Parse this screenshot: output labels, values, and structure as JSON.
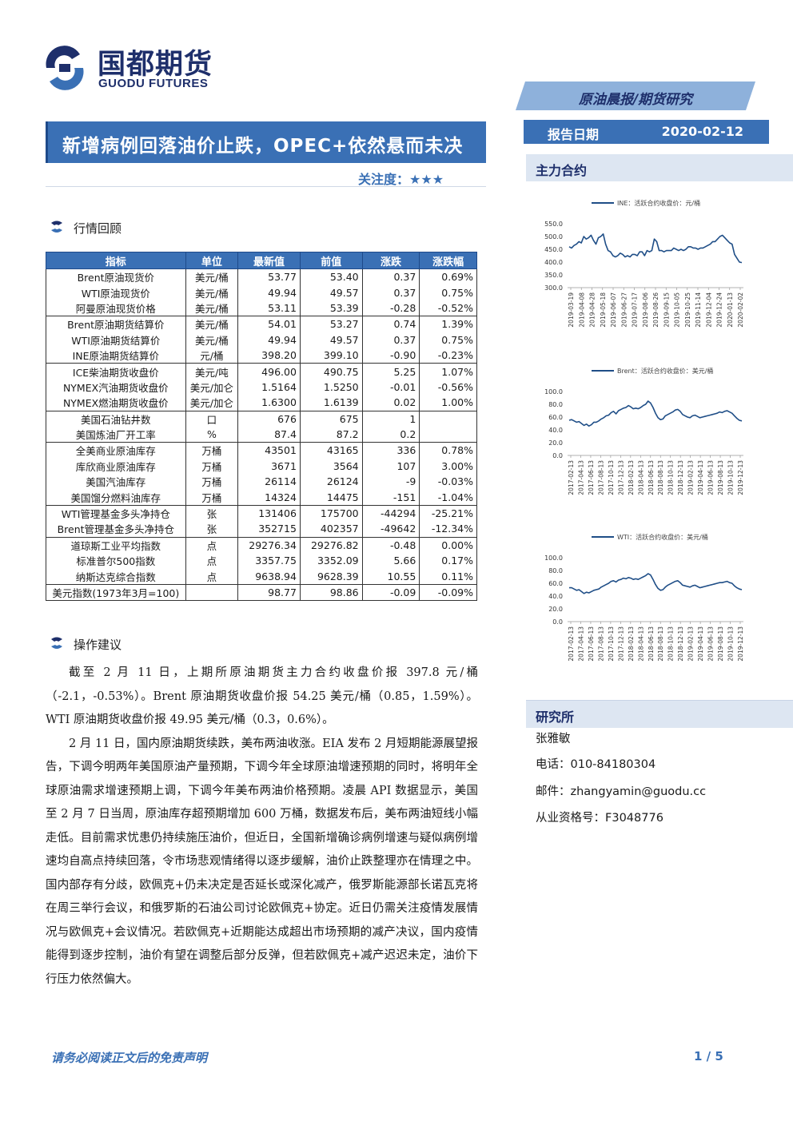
{
  "header": {
    "company_cn": "国都期货",
    "company_en": "GUODU FUTURES",
    "report_type": "原油晨报/期货研究",
    "title": "新增病例回落油价止跌，OPEC+依然悬而未决",
    "focus_label": "关注度：",
    "focus_stars": 3,
    "date_label": "报告日期",
    "date_value": "2020-02-12"
  },
  "sections": {
    "market_review": "行情回顾",
    "advice": "操作建议",
    "main_contract": "主力合约",
    "institute": "研究所"
  },
  "table": {
    "headers": [
      "指标",
      "单位",
      "最新值",
      "前值",
      "涨跌",
      "涨跌幅"
    ],
    "rows": [
      {
        "name": "Brent原油现货价",
        "unit": "美元/桶",
        "latest": "53.77",
        "prev": "53.40",
        "chg": "0.37",
        "pct": "0.69%"
      },
      {
        "name": "WTI原油现货价",
        "unit": "美元/桶",
        "latest": "49.94",
        "prev": "49.57",
        "chg": "0.37",
        "pct": "0.75%"
      },
      {
        "name": "阿曼原油现货价格",
        "unit": "美元/桶",
        "latest": "53.11",
        "prev": "53.39",
        "chg": "-0.28",
        "pct": "-0.52%"
      },
      {
        "name": "Brent原油期货结算价",
        "unit": "美元/桶",
        "latest": "54.01",
        "prev": "53.27",
        "chg": "0.74",
        "pct": "1.39%"
      },
      {
        "name": "WTI原油期货结算价",
        "unit": "美元/桶",
        "latest": "49.94",
        "prev": "49.57",
        "chg": "0.37",
        "pct": "0.75%"
      },
      {
        "name": "INE原油期货结算价",
        "unit": "元/桶",
        "latest": "398.20",
        "prev": "399.10",
        "chg": "-0.90",
        "pct": "-0.23%"
      },
      {
        "name": "ICE柴油期货收盘价",
        "unit": "美元/吨",
        "latest": "496.00",
        "prev": "490.75",
        "chg": "5.25",
        "pct": "1.07%"
      },
      {
        "name": "NYMEX汽油期货收盘价",
        "unit": "美元/加仑",
        "latest": "1.5164",
        "prev": "1.5250",
        "chg": "-0.01",
        "pct": "-0.56%"
      },
      {
        "name": "NYMEX燃油期货收盘价",
        "unit": "美元/加仑",
        "latest": "1.6300",
        "prev": "1.6139",
        "chg": "0.02",
        "pct": "1.00%"
      },
      {
        "name": "美国石油钻井数",
        "unit": "口",
        "latest": "676",
        "prev": "675",
        "chg": "1",
        "pct": ""
      },
      {
        "name": "美国炼油厂开工率",
        "unit": "%",
        "latest": "87.4",
        "prev": "87.2",
        "chg": "0.2",
        "pct": ""
      },
      {
        "name": "全美商业原油库存",
        "unit": "万桶",
        "latest": "43501",
        "prev": "43165",
        "chg": "336",
        "pct": "0.78%"
      },
      {
        "name": "库欣商业原油库存",
        "unit": "万桶",
        "latest": "3671",
        "prev": "3564",
        "chg": "107",
        "pct": "3.00%"
      },
      {
        "name": "美国汽油库存",
        "unit": "万桶",
        "latest": "26114",
        "prev": "26124",
        "chg": "-9",
        "pct": "-0.03%"
      },
      {
        "name": "美国馏分燃料油库存",
        "unit": "万桶",
        "latest": "14324",
        "prev": "14475",
        "chg": "-151",
        "pct": "-1.04%"
      },
      {
        "name": "WTI管理基金多头净持仓",
        "unit": "张",
        "latest": "131406",
        "prev": "175700",
        "chg": "-44294",
        "pct": "-25.21%"
      },
      {
        "name": "Brent管理基金多头净持仓",
        "unit": "张",
        "latest": "352715",
        "prev": "402357",
        "chg": "-49642",
        "pct": "-12.34%"
      },
      {
        "name": "道琼斯工业平均指数",
        "unit": "点",
        "latest": "29276.34",
        "prev": "29276.82",
        "chg": "-0.48",
        "pct": "0.00%"
      },
      {
        "name": "标准普尔500指数",
        "unit": "点",
        "latest": "3357.75",
        "prev": "3352.09",
        "chg": "5.66",
        "pct": "0.17%"
      },
      {
        "name": "纳斯达克综合指数",
        "unit": "点",
        "latest": "9638.94",
        "prev": "9628.39",
        "chg": "10.55",
        "pct": "0.11%"
      },
      {
        "name": "美元指数(1973年3月=100)",
        "unit": "",
        "latest": "98.77",
        "prev": "98.86",
        "chg": "-0.09",
        "pct": "-0.09%"
      }
    ]
  },
  "advice": {
    "p1": "截至 2 月 11 日，上期所原油期货主力合约收盘价报 397.8 元/桶（-2.1，-0.53%）。Brent 原油期货收盘价报 54.25 美元/桶（0.85，1.59%）。WTI 原油期货收盘价报 49.95 美元/桶（0.3，0.6%）。",
    "p2": "2 月 11 日，国内原油期货续跌，美布两油收涨。EIA 发布 2 月短期能源展望报告，下调今明两年美国原油产量预期，下调今年全球原油增速预期的同时，将明年全球原油需求增速预期上调，下调今年美布两油价格预期。凌晨 API 数据显示，美国至 2 月 7 日当周，原油库存超预期增加 600 万桶，数据发布后，美布两油短线小幅走低。目前需求忧患仍持续施压油价，但近日，全国新增确诊病例增速与疑似病例增速均自高点持续回落，令市场悲观情绪得以逐步缓解，油价止跌整理亦在情理之中。国内部存有分歧，欧佩克+仍未决定是否延长或深化减产，俄罗斯能源部长诺瓦克将在周三举行会议，和俄罗斯的石油公司讨论欧佩克+协定。近日仍需关注疫情发展情况与欧佩克+会议情况。若欧佩克+近期能达成超出市场预期的减产决议，国内疫情能得到逐步控制，油价有望在调整后部分反弹，但若欧佩克+减产迟迟未定，油价下行压力依然偏大。"
  },
  "chart_data": [
    {
      "type": "line",
      "legend": "INE：活跃合约收盘价：元/桶",
      "ylim": [
        300,
        550
      ],
      "yticks": [
        "550.0",
        "500.0",
        "450.0",
        "400.0",
        "350.0",
        "300.0"
      ],
      "xticks": [
        "2019-03-19",
        "2019-04-08",
        "2019-04-28",
        "2019-05-18",
        "2019-06-07",
        "2019-06-27",
        "2019-07-17",
        "2019-08-06",
        "2019-08-26",
        "2019-09-15",
        "2019-10-05",
        "2019-10-25",
        "2019-11-14",
        "2019-12-04",
        "2019-12-24",
        "2020-01-13",
        "2020-02-02"
      ],
      "values": [
        460,
        455,
        465,
        470,
        480,
        475,
        500,
        490,
        495,
        505,
        485,
        470,
        495,
        500,
        510,
        470,
        445,
        440,
        425,
        420,
        425,
        435,
        430,
        420,
        425,
        420,
        430,
        430,
        425,
        440,
        440,
        425,
        445,
        440,
        445,
        490,
        480,
        445,
        445,
        440,
        445,
        445,
        445,
        455,
        450,
        445,
        450,
        445,
        450,
        460,
        460,
        455,
        455,
        450,
        455,
        455,
        460,
        465,
        470,
        480,
        480,
        490,
        500,
        505,
        495,
        485,
        475,
        470,
        430,
        415,
        400,
        398
      ]
    },
    {
      "type": "line",
      "legend": "Brent：活跃合约收盘价：美元/桶",
      "ylim": [
        0,
        100
      ],
      "yticks": [
        "100.0",
        "80.0",
        "60.0",
        "40.0",
        "20.0",
        "0.0"
      ],
      "xticks": [
        "2017-02-13",
        "2017-04-13",
        "2017-06-13",
        "2017-08-13",
        "2017-10-13",
        "2017-12-13",
        "2018-02-13",
        "2018-04-13",
        "2018-06-13",
        "2018-08-13",
        "2018-10-13",
        "2018-12-13",
        "2019-02-13",
        "2019-04-13",
        "2019-06-13",
        "2019-08-13",
        "2019-10-13",
        "2019-12-13"
      ],
      "values": [
        55,
        56,
        54,
        52,
        53,
        50,
        47,
        49,
        46,
        48,
        52,
        52,
        54,
        57,
        59,
        62,
        63,
        67,
        69,
        65,
        70,
        72,
        74,
        75,
        78,
        76,
        73,
        74,
        73,
        75,
        78,
        80,
        85,
        82,
        75,
        66,
        59,
        56,
        57,
        62,
        64,
        66,
        68,
        71,
        72,
        69,
        64,
        62,
        60,
        59,
        62,
        63,
        61,
        59,
        60,
        61,
        62,
        63,
        64,
        65,
        66,
        68,
        67,
        69,
        70,
        68,
        66,
        62,
        58,
        55,
        54
      ]
    },
    {
      "type": "line",
      "legend": "WTI：活跃合约收盘价：美元/桶",
      "ylim": [
        0,
        100
      ],
      "yticks": [
        "100.0",
        "80.0",
        "60.0",
        "40.0",
        "20.0",
        "0.0"
      ],
      "xticks": [
        "2017-02-13",
        "2017-04-13",
        "2017-06-13",
        "2017-08-13",
        "2017-10-13",
        "2017-12-13",
        "2018-02-13",
        "2018-04-13",
        "2018-06-13",
        "2018-08-13",
        "2018-10-13",
        "2018-12-13",
        "2019-02-13",
        "2019-04-13",
        "2019-06-13",
        "2019-08-13",
        "2019-10-13",
        "2019-12-13"
      ],
      "values": [
        53,
        53,
        51,
        49,
        50,
        47,
        44,
        46,
        45,
        47,
        49,
        50,
        51,
        54,
        56,
        58,
        60,
        63,
        64,
        62,
        65,
        66,
        68,
        67,
        69,
        68,
        66,
        67,
        66,
        68,
        70,
        72,
        75,
        73,
        66,
        58,
        52,
        49,
        50,
        54,
        57,
        59,
        61,
        63,
        64,
        61,
        57,
        56,
        55,
        54,
        56,
        57,
        55,
        53,
        54,
        55,
        56,
        57,
        58,
        59,
        60,
        61,
        61,
        62,
        63,
        61,
        60,
        56,
        53,
        51,
        50
      ]
    }
  ],
  "contact": {
    "name": "张雅敏",
    "phone": "电话：010-84180304",
    "email": "邮件：zhangyamin@guodu.cc",
    "license": "从业资格号：F3048776"
  },
  "footer": {
    "disclaimer": "请务必阅读正文后的免责声明",
    "page": "1 / 5"
  },
  "colors": {
    "brand_blue": "#3a70b5",
    "navy": "#1e2f6b",
    "line": "#1f4e87"
  }
}
